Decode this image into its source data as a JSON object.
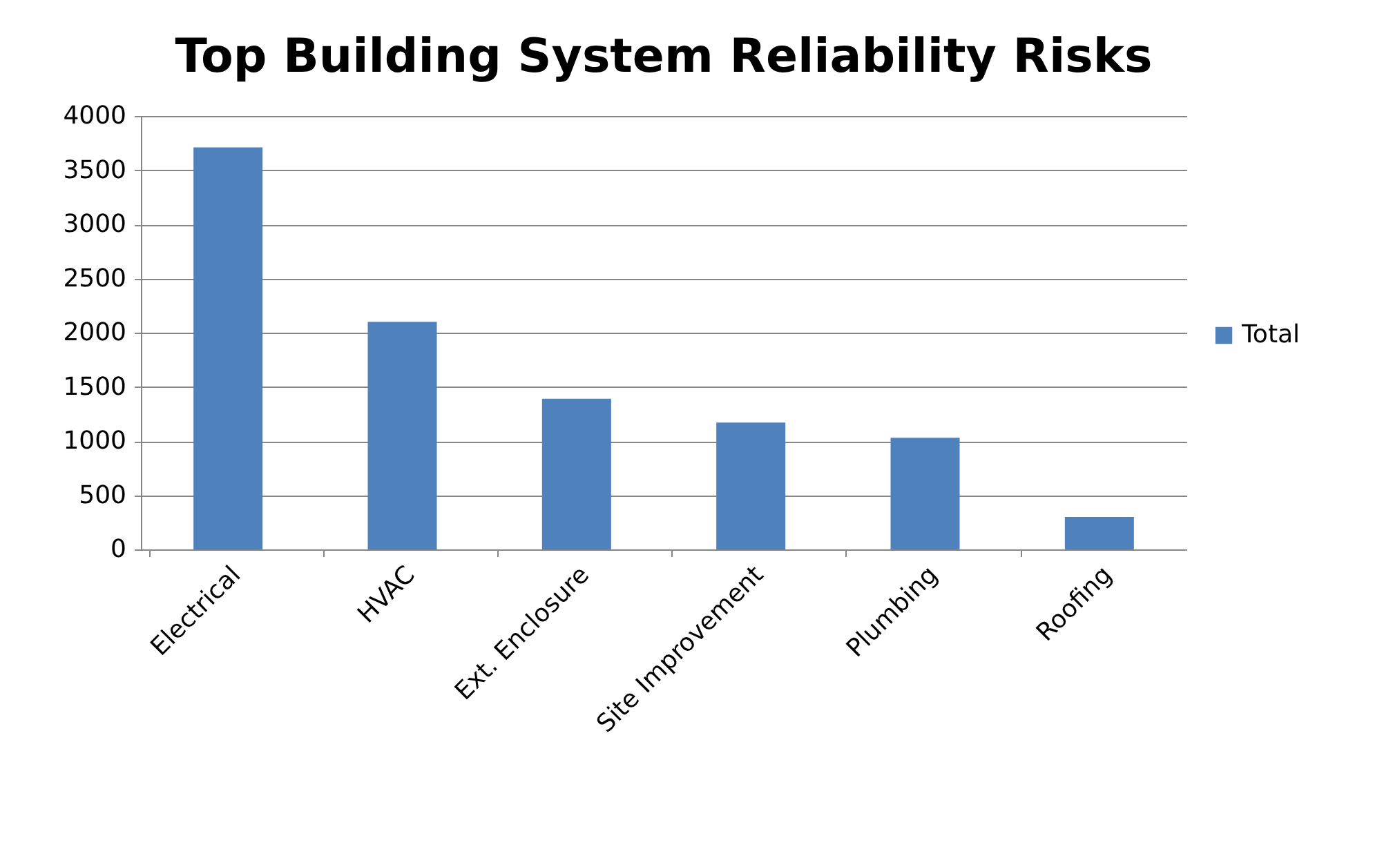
{
  "chart_data": {
    "type": "bar",
    "title": "Top Building System Reliability Risks",
    "categories": [
      "Electrical",
      "HVAC",
      "Ext. Enclosure",
      "Site Improvement",
      "Plumbing",
      "Roofing"
    ],
    "series": [
      {
        "name": "Total",
        "color": "#4f81bd",
        "values": [
          3710,
          2100,
          1390,
          1170,
          1030,
          300
        ]
      }
    ],
    "ylim": [
      0,
      4000
    ],
    "yticks": [
      0,
      500,
      1000,
      1500,
      2000,
      2500,
      3000,
      3500,
      4000
    ],
    "grid": "y",
    "legend": "right"
  }
}
